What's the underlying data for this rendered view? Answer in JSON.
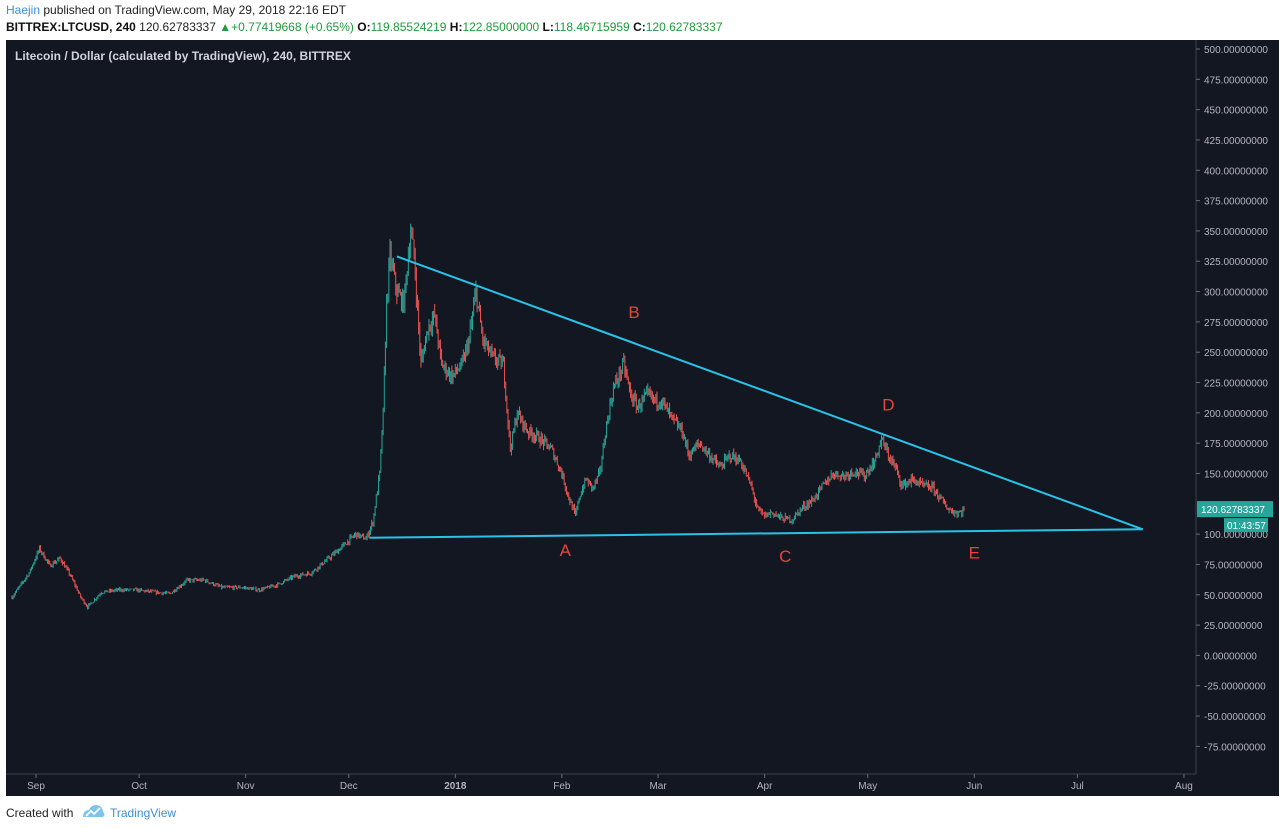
{
  "header": {
    "author": "Haejin",
    "published": "published on TradingView.com, May 29, 2018 22:16 EDT",
    "symbol": "BITTREX:LTCUSD, 240",
    "last": "120.62783337",
    "change_arrow": "▲",
    "change": "+0.77419668 (+0.65%)",
    "o_label": "O:",
    "o_value": "119.85524219",
    "h_label": "H:",
    "h_value": "122.85000000",
    "l_label": "L:",
    "l_value": "118.46715959",
    "c_label": "C:",
    "c_value": "120.62783337"
  },
  "colors": {
    "background": "#131722",
    "up": "#26a69a",
    "down": "#ef5350",
    "trendline": "#29c3e8",
    "wave_label": "#e8453c",
    "axis_text": "#b2b5be",
    "price_tag": "#26a69a"
  },
  "chart_data": {
    "type": "candlestick",
    "title": "Litecoin / Dollar (calculated by TradingView), 240, BITTREX",
    "y_range": [
      -100,
      510
    ],
    "y_ticks": [
      {
        "value": 500,
        "label": "500.00000000"
      },
      {
        "value": 475,
        "label": "475.00000000"
      },
      {
        "value": 450,
        "label": "450.00000000"
      },
      {
        "value": 425,
        "label": "425.00000000"
      },
      {
        "value": 400,
        "label": "400.00000000"
      },
      {
        "value": 375,
        "label": "375.00000000"
      },
      {
        "value": 350,
        "label": "350.00000000"
      },
      {
        "value": 325,
        "label": "325.00000000"
      },
      {
        "value": 300,
        "label": "300.00000000"
      },
      {
        "value": 275,
        "label": "275.00000000"
      },
      {
        "value": 250,
        "label": "250.00000000"
      },
      {
        "value": 225,
        "label": "225.00000000"
      },
      {
        "value": 200,
        "label": "200.00000000"
      },
      {
        "value": 175,
        "label": "175.00000000"
      },
      {
        "value": 150,
        "label": "150.00000000"
      },
      {
        "value": 100,
        "label": "100.00000000"
      },
      {
        "value": 75,
        "label": "75.00000000"
      },
      {
        "value": 50,
        "label": "50.00000000"
      },
      {
        "value": 25,
        "label": "25.00000000"
      },
      {
        "value": 0,
        "label": "0.00000000"
      },
      {
        "value": -25,
        "label": "-25.00000000"
      },
      {
        "value": -50,
        "label": "-50.00000000"
      },
      {
        "value": -75,
        "label": "-75.00000000"
      }
    ],
    "x_range": [
      "2017-08-25",
      "2018-08-10"
    ],
    "x_ticks": [
      {
        "date": "2017-09-01",
        "label": "Sep"
      },
      {
        "date": "2017-10-01",
        "label": "Oct"
      },
      {
        "date": "2017-11-01",
        "label": "Nov"
      },
      {
        "date": "2017-12-01",
        "label": "Dec"
      },
      {
        "date": "2018-01-01",
        "label": "2018"
      },
      {
        "date": "2018-02-01",
        "label": "Feb"
      },
      {
        "date": "2018-03-01",
        "label": "Mar"
      },
      {
        "date": "2018-04-01",
        "label": "Apr"
      },
      {
        "date": "2018-05-01",
        "label": "May"
      },
      {
        "date": "2018-06-01",
        "label": "Jun"
      },
      {
        "date": "2018-07-01",
        "label": "Jul"
      },
      {
        "date": "2018-08-01",
        "label": "Aug"
      }
    ],
    "price_path": [
      [
        "2017-08-25",
        48
      ],
      [
        "2017-08-30",
        68
      ],
      [
        "2017-09-02",
        88
      ],
      [
        "2017-09-05",
        74
      ],
      [
        "2017-09-08",
        80
      ],
      [
        "2017-09-11",
        66
      ],
      [
        "2017-09-14",
        48
      ],
      [
        "2017-09-16",
        40
      ],
      [
        "2017-09-20",
        52
      ],
      [
        "2017-09-25",
        54
      ],
      [
        "2017-09-30",
        54
      ],
      [
        "2017-10-06",
        52
      ],
      [
        "2017-10-10",
        51
      ],
      [
        "2017-10-15",
        62
      ],
      [
        "2017-10-20",
        62
      ],
      [
        "2017-10-25",
        56
      ],
      [
        "2017-10-31",
        56
      ],
      [
        "2017-11-05",
        54
      ],
      [
        "2017-11-10",
        58
      ],
      [
        "2017-11-15",
        65
      ],
      [
        "2017-11-20",
        68
      ],
      [
        "2017-11-26",
        82
      ],
      [
        "2017-11-30",
        92
      ],
      [
        "2017-12-03",
        100
      ],
      [
        "2017-12-06",
        96
      ],
      [
        "2017-12-08",
        110
      ],
      [
        "2017-12-10",
        150
      ],
      [
        "2017-12-11",
        200
      ],
      [
        "2017-12-12",
        290
      ],
      [
        "2017-12-13",
        330
      ],
      [
        "2017-12-15",
        300
      ],
      [
        "2017-12-17",
        290
      ],
      [
        "2017-12-19",
        350
      ],
      [
        "2017-12-20",
        330
      ],
      [
        "2017-12-22",
        240
      ],
      [
        "2017-12-24",
        270
      ],
      [
        "2017-12-26",
        280
      ],
      [
        "2017-12-28",
        240
      ],
      [
        "2017-12-31",
        230
      ],
      [
        "2018-01-03",
        240
      ],
      [
        "2018-01-05",
        260
      ],
      [
        "2018-01-07",
        300
      ],
      [
        "2018-01-09",
        260
      ],
      [
        "2018-01-12",
        245
      ],
      [
        "2018-01-15",
        240
      ],
      [
        "2018-01-17",
        170
      ],
      [
        "2018-01-19",
        200
      ],
      [
        "2018-01-22",
        185
      ],
      [
        "2018-01-25",
        180
      ],
      [
        "2018-01-29",
        170
      ],
      [
        "2018-02-01",
        150
      ],
      [
        "2018-02-03",
        130
      ],
      [
        "2018-02-05",
        115
      ],
      [
        "2018-02-06",
        130
      ],
      [
        "2018-02-08",
        145
      ],
      [
        "2018-02-10",
        138
      ],
      [
        "2018-02-12",
        150
      ],
      [
        "2018-02-14",
        190
      ],
      [
        "2018-02-16",
        220
      ],
      [
        "2018-02-19",
        240
      ],
      [
        "2018-02-21",
        215
      ],
      [
        "2018-02-23",
        205
      ],
      [
        "2018-02-26",
        215
      ],
      [
        "2018-02-28",
        210
      ],
      [
        "2018-03-02",
        210
      ],
      [
        "2018-03-05",
        195
      ],
      [
        "2018-03-08",
        185
      ],
      [
        "2018-03-10",
        165
      ],
      [
        "2018-03-13",
        175
      ],
      [
        "2018-03-16",
        165
      ],
      [
        "2018-03-19",
        155
      ],
      [
        "2018-03-22",
        165
      ],
      [
        "2018-03-25",
        160
      ],
      [
        "2018-03-28",
        140
      ],
      [
        "2018-03-30",
        120
      ],
      [
        "2018-04-01",
        115
      ],
      [
        "2018-04-03",
        118
      ],
      [
        "2018-04-06",
        113
      ],
      [
        "2018-04-09",
        112
      ],
      [
        "2018-04-12",
        122
      ],
      [
        "2018-04-15",
        128
      ],
      [
        "2018-04-18",
        140
      ],
      [
        "2018-04-21",
        150
      ],
      [
        "2018-04-24",
        148
      ],
      [
        "2018-04-27",
        152
      ],
      [
        "2018-04-30",
        148
      ],
      [
        "2018-05-03",
        160
      ],
      [
        "2018-05-05",
        178
      ],
      [
        "2018-05-07",
        165
      ],
      [
        "2018-05-09",
        155
      ],
      [
        "2018-05-11",
        140
      ],
      [
        "2018-05-14",
        145
      ],
      [
        "2018-05-17",
        140
      ],
      [
        "2018-05-20",
        138
      ],
      [
        "2018-05-22",
        130
      ],
      [
        "2018-05-24",
        122
      ],
      [
        "2018-05-26",
        118
      ],
      [
        "2018-05-28",
        118
      ],
      [
        "2018-05-29",
        120.63
      ]
    ],
    "trendlines": [
      {
        "name": "upper",
        "from": [
          "2017-12-15",
          329
        ],
        "to": [
          "2018-07-20",
          104
        ]
      },
      {
        "name": "lower",
        "from": [
          "2017-12-07",
          97
        ],
        "to": [
          "2018-07-20",
          104
        ]
      }
    ],
    "annotations": [
      {
        "text": "A",
        "date": "2018-02-02",
        "price": 82
      },
      {
        "text": "B",
        "date": "2018-02-22",
        "price": 278
      },
      {
        "text": "C",
        "date": "2018-04-07",
        "price": 77
      },
      {
        "text": "D",
        "date": "2018-05-07",
        "price": 202
      },
      {
        "text": "E",
        "date": "2018-06-01",
        "price": 80
      }
    ],
    "last_price_label": "120.62783337",
    "countdown_label": "01:43:57"
  },
  "footer": {
    "created_with": "Created with",
    "brand": "TradingView"
  }
}
